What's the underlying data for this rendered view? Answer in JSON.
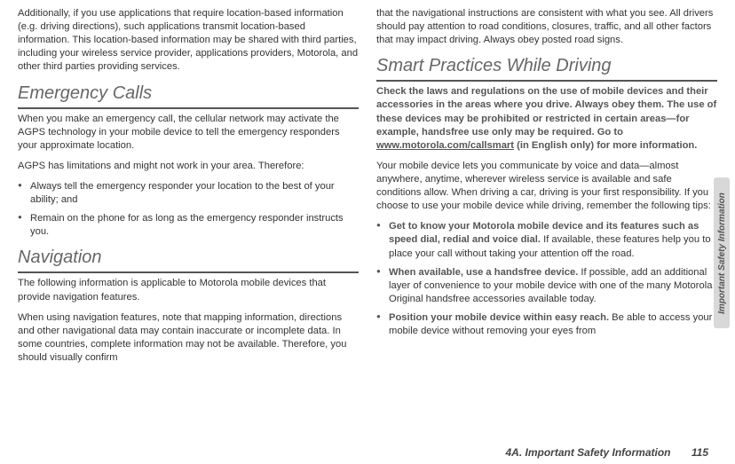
{
  "left": {
    "p1": "Additionally, if you use applications that require location-based information (e.g. driving directions), such applications transmit location-based information. This location-based information may be shared with third parties, including your wireless service provider, applications providers, Motorola, and other third parties providing services.",
    "h_emergency": "Emergency Calls",
    "p2": "When you make an emergency call, the cellular network may activate the AGPS technology in your mobile device to tell the emergency responders your approximate location.",
    "p3": "AGPS has limitations and might not work in your area. Therefore:",
    "bullets1": [
      "Always tell the emergency responder your location to the best of your ability; and",
      "Remain on the phone for as long as the emergency responder instructs you."
    ],
    "h_nav": "Navigation",
    "p4": "The following information is applicable to Motorola mobile devices that provide navigation features.",
    "p5": "When using navigation features, note that mapping information, directions and other navigational data may contain inaccurate or incomplete data. In some countries, complete information may not be available. Therefore, you should visually confirm"
  },
  "right": {
    "p1": "that the navigational instructions are consistent with what you see. All drivers should pay attention to road conditions, closures, traffic, and all other factors that may impact driving. Always obey posted road signs.",
    "h_smart": "Smart Practices While Driving",
    "bold1a": "Check the laws and regulations on the use of mobile devices and their accessories in the areas where you drive. Always obey them. The use of these devices may be prohibited or restricted in certain areas—for example, handsfree use only may be required. Go to ",
    "bold1_link": "www.motorola.com/callsmart",
    "bold1b": " (in English only) for more information.",
    "p2": "Your mobile device lets you communicate by voice and data—almost anywhere, anytime, wherever wireless service is available and safe conditions allow. When driving a car, driving is your first responsibility. If you choose to use your mobile device while driving, remember the following tips:",
    "bullets2": [
      {
        "bold": "Get to know your Motorola mobile device and its features such as speed dial, redial and voice dial.",
        "rest": " If available, these features help you to place your call without taking your attention off the road."
      },
      {
        "bold": "When available, use a handsfree device.",
        "rest": " If possible, add an additional layer of convenience to your mobile device with one of the many Motorola Original handsfree accessories available today."
      },
      {
        "bold": "Position your mobile device within easy reach.",
        "rest": " Be able to access your mobile device without removing your eyes from"
      }
    ]
  },
  "side_tab": "Important Safety Information",
  "footer_section": "4A. Important Safety Information",
  "footer_page": "115"
}
